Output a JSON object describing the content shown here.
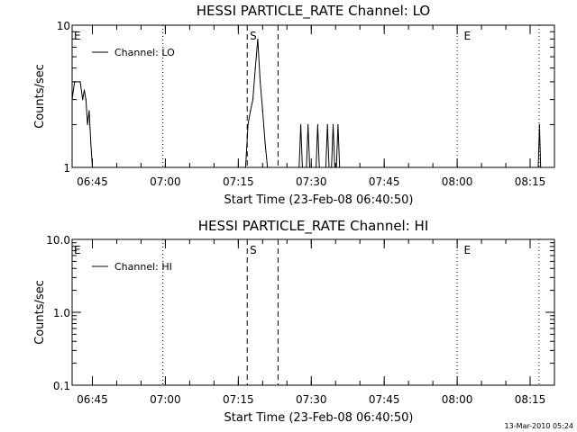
{
  "footer_stamp": "13-Mar-2010 05:24",
  "chart_data": [
    {
      "type": "line",
      "title": "HESSI PARTICLE_RATE Channel: LO",
      "xlabel": "Start Time (23-Feb-08 06:40:50)",
      "ylabel": "Counts/sec",
      "y_scale": "log",
      "ylim": [
        1,
        10
      ],
      "y_ticks": [
        1,
        10
      ],
      "y_tick_labels": [
        "1",
        "10"
      ],
      "xlim": [
        "06:40:50",
        "08:20:00"
      ],
      "x_ticks": [
        "06:45",
        "07:00",
        "07:15",
        "07:30",
        "07:45",
        "08:00",
        "08:15"
      ],
      "grid": false,
      "legend_position": "top-left",
      "series": [
        {
          "name": "Channel: LO",
          "x": [
            "06:40:50",
            "06:41:20",
            "06:42:30",
            "06:43:00",
            "06:43:20",
            "06:43:40",
            "06:44:00",
            "06:44:20",
            "06:44:40",
            "06:45:00",
            "06:45:20",
            "07:16:30",
            "07:17:00",
            "07:17:30",
            "07:18:00",
            "07:18:30",
            "07:19:00",
            "07:19:30",
            "07:20:00",
            "07:20:30",
            "07:21:00",
            "07:21:30",
            "07:27:30",
            "07:27:50",
            "07:28:10",
            "07:29:00",
            "07:29:20",
            "07:29:40",
            "07:31:00",
            "07:31:20",
            "07:31:40",
            "07:33:00",
            "07:33:20",
            "07:33:40",
            "07:34:10",
            "07:34:30",
            "07:34:50",
            "07:35:10",
            "07:35:30",
            "07:35:50",
            "08:16:40",
            "08:16:55",
            "08:17:10"
          ],
          "values": [
            3,
            4,
            4,
            3,
            3.5,
            3,
            2,
            2.5,
            1.5,
            1,
            1,
            1,
            2,
            2.5,
            3,
            5,
            8,
            4,
            2.5,
            1.5,
            1,
            1,
            1,
            2,
            1,
            1,
            2,
            1,
            1,
            2,
            1,
            1,
            2,
            1,
            1,
            2,
            1,
            1,
            2,
            1,
            1,
            2,
            1
          ]
        }
      ],
      "annotations": [
        {
          "text": "E",
          "at": "06:40:50"
        },
        {
          "text": "S",
          "at": "07:17:00"
        },
        {
          "text": "E",
          "at": "08:01:00"
        }
      ],
      "vertical_lines": [
        {
          "at": "06:59:30",
          "style": "dotted"
        },
        {
          "at": "07:16:50",
          "style": "dashed"
        },
        {
          "at": "07:23:10",
          "style": "dashed"
        },
        {
          "at": "08:00:00",
          "style": "dotted"
        },
        {
          "at": "08:16:50",
          "style": "dotted"
        }
      ]
    },
    {
      "type": "line",
      "title": "HESSI PARTICLE_RATE Channel: HI",
      "xlabel": "Start Time (23-Feb-08 06:40:50)",
      "ylabel": "Counts/sec",
      "y_scale": "log",
      "ylim": [
        0.1,
        10
      ],
      "y_ticks": [
        0.1,
        1,
        10
      ],
      "y_tick_labels": [
        "0.1",
        "1.0",
        "10.0"
      ],
      "xlim": [
        "06:40:50",
        "08:20:00"
      ],
      "x_ticks": [
        "06:45",
        "07:00",
        "07:15",
        "07:30",
        "07:45",
        "08:00",
        "08:15"
      ],
      "grid": false,
      "legend_position": "top-left",
      "series": [
        {
          "name": "Channel: HI",
          "x": [],
          "values": []
        }
      ],
      "annotations": [
        {
          "text": "E",
          "at": "06:40:50"
        },
        {
          "text": "S",
          "at": "07:17:00"
        },
        {
          "text": "E",
          "at": "08:01:00"
        }
      ],
      "vertical_lines": [
        {
          "at": "06:59:30",
          "style": "dotted"
        },
        {
          "at": "07:16:50",
          "style": "dashed"
        },
        {
          "at": "07:23:10",
          "style": "dashed"
        },
        {
          "at": "08:00:00",
          "style": "dotted"
        },
        {
          "at": "08:16:50",
          "style": "dotted"
        }
      ]
    }
  ]
}
